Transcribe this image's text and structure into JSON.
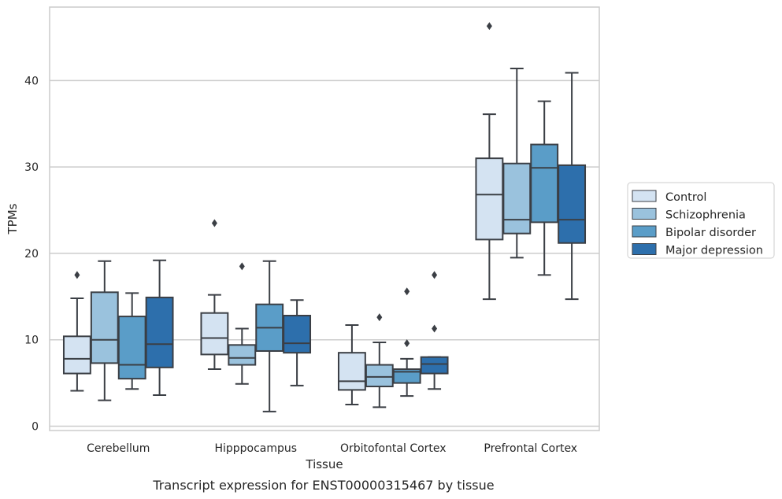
{
  "chart_data": {
    "type": "box",
    "caption": "Transcript expression for ENST00000315467 by tissue",
    "xlabel": "Tissue",
    "ylabel": "TPMs",
    "ylim": [
      -0.5,
      48.5
    ],
    "yticks": [
      0,
      10,
      20,
      30,
      40
    ],
    "grid": "horizontal",
    "legend_position": "right",
    "categories": [
      "Cerebellum",
      "Hipppocampus",
      "Orbitofontal Cortex",
      "Prefrontal Cortex"
    ],
    "series": [
      {
        "name": "Control",
        "color": "#d4e3f2",
        "boxes": [
          {
            "whislo": 4.1,
            "q1": 6.1,
            "med": 7.8,
            "q3": 10.4,
            "whishi": 14.8,
            "fliers": [
              17.5
            ]
          },
          {
            "whislo": 6.6,
            "q1": 8.3,
            "med": 10.2,
            "q3": 13.1,
            "whishi": 15.2,
            "fliers": [
              23.5
            ]
          },
          {
            "whislo": 2.5,
            "q1": 4.2,
            "med": 5.2,
            "q3": 8.5,
            "whishi": 11.7,
            "fliers": []
          },
          {
            "whislo": 14.7,
            "q1": 21.6,
            "med": 26.8,
            "q3": 31.0,
            "whishi": 36.1,
            "fliers": [
              46.3
            ]
          }
        ]
      },
      {
        "name": "Schizophrenia",
        "color": "#9ac2dd",
        "boxes": [
          {
            "whislo": 3.0,
            "q1": 7.3,
            "med": 10.0,
            "q3": 15.5,
            "whishi": 19.1,
            "fliers": []
          },
          {
            "whislo": 4.9,
            "q1": 7.1,
            "med": 7.9,
            "q3": 9.4,
            "whishi": 11.3,
            "fliers": [
              18.5
            ]
          },
          {
            "whislo": 2.2,
            "q1": 4.6,
            "med": 5.7,
            "q3": 7.1,
            "whishi": 9.7,
            "fliers": [
              12.6
            ]
          },
          {
            "whislo": 19.5,
            "q1": 22.3,
            "med": 23.9,
            "q3": 30.4,
            "whishi": 41.4,
            "fliers": []
          }
        ]
      },
      {
        "name": "Bipolar disorder",
        "color": "#5a9dc8",
        "boxes": [
          {
            "whislo": 4.3,
            "q1": 5.5,
            "med": 7.1,
            "q3": 12.7,
            "whishi": 15.4,
            "fliers": []
          },
          {
            "whislo": 1.7,
            "q1": 8.7,
            "med": 11.4,
            "q3": 14.1,
            "whishi": 19.1,
            "fliers": []
          },
          {
            "whislo": 3.5,
            "q1": 5.0,
            "med": 6.3,
            "q3": 6.6,
            "whishi": 7.8,
            "fliers": [
              9.6,
              15.6
            ]
          },
          {
            "whislo": 17.5,
            "q1": 23.6,
            "med": 29.9,
            "q3": 32.6,
            "whishi": 37.6,
            "fliers": []
          }
        ]
      },
      {
        "name": "Major depression",
        "color": "#2d6fac",
        "boxes": [
          {
            "whislo": 3.6,
            "q1": 6.8,
            "med": 9.5,
            "q3": 14.9,
            "whishi": 19.2,
            "fliers": []
          },
          {
            "whislo": 4.7,
            "q1": 8.5,
            "med": 9.6,
            "q3": 12.8,
            "whishi": 14.6,
            "fliers": []
          },
          {
            "whislo": 4.3,
            "q1": 6.1,
            "med": 7.2,
            "q3": 8.0,
            "whishi": 8.0,
            "fliers": [
              11.3,
              17.5
            ]
          },
          {
            "whislo": 14.7,
            "q1": 21.2,
            "med": 23.9,
            "q3": 30.2,
            "whishi": 40.9,
            "fliers": []
          }
        ]
      }
    ]
  }
}
